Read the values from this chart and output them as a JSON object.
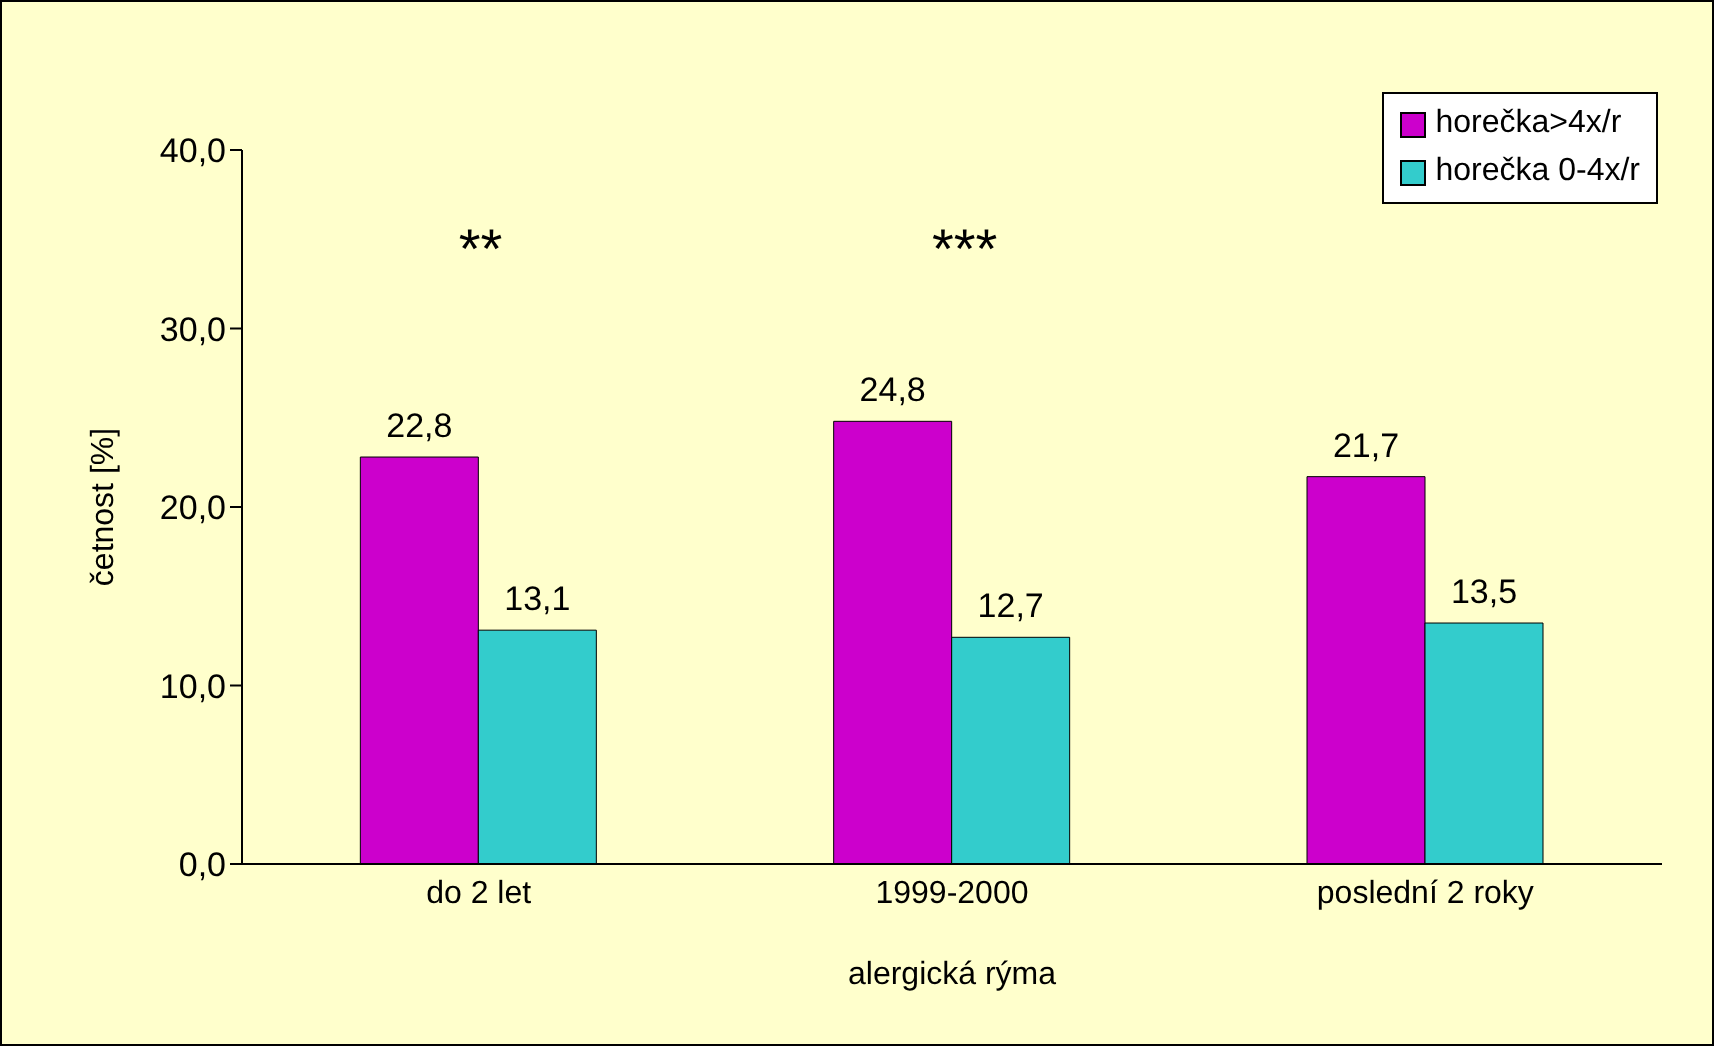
{
  "chart_data": {
    "type": "bar",
    "xlabel": "alergická rýma",
    "ylabel": "četnost [%]",
    "categories": [
      "do 2 let",
      "1999-2000",
      "poslední 2 roky"
    ],
    "series": [
      {
        "name": "horečka>4x/r",
        "color": "#cc00cc",
        "values": [
          22.8,
          24.8,
          21.7
        ],
        "value_labels": [
          "22,8",
          "24,8",
          "21,7"
        ]
      },
      {
        "name": "horečka 0-4x/r",
        "color": "#33cccc",
        "values": [
          13.1,
          12.7,
          13.5
        ],
        "value_labels": [
          "13,1",
          "12,7",
          "13,5"
        ]
      }
    ],
    "ylim": [
      0,
      40
    ],
    "yticks": [
      {
        "value": 0,
        "label": "0,0"
      },
      {
        "value": 10,
        "label": "10,0"
      },
      {
        "value": 20,
        "label": "20,0"
      },
      {
        "value": 30,
        "label": "30,0"
      },
      {
        "value": 40,
        "label": "40,0"
      }
    ],
    "annotations": [
      "**",
      "***"
    ],
    "legend": "top right"
  }
}
